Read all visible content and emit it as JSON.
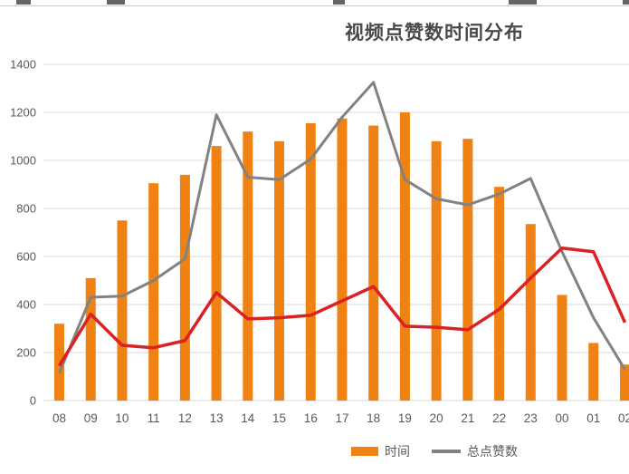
{
  "chart_data": {
    "type": "bar+line combo",
    "title": "视频点赞数时间分布",
    "categories": [
      "08",
      "09",
      "10",
      "11",
      "12",
      "13",
      "14",
      "15",
      "16",
      "17",
      "18",
      "19",
      "20",
      "21",
      "22",
      "23",
      "00",
      "01",
      "02"
    ],
    "bar_series": {
      "name": "时间",
      "color": "#EF8212",
      "values": [
        320,
        510,
        750,
        905,
        940,
        1060,
        1120,
        1080,
        1155,
        1175,
        1145,
        1200,
        1080,
        1090,
        890,
        735,
        440,
        240,
        150
      ]
    },
    "line_series": [
      {
        "name": "总点赞数",
        "color": "#828282",
        "values": [
          115,
          430,
          435,
          500,
          590,
          1190,
          930,
          920,
          1005,
          1180,
          1325,
          920,
          840,
          815,
          860,
          925,
          620,
          345,
          130
        ]
      },
      {
        "name": "",
        "color": "#D92222",
        "values": [
          145,
          360,
          230,
          220,
          250,
          450,
          340,
          345,
          355,
          415,
          475,
          310,
          305,
          295,
          380,
          510,
          635,
          620,
          325
        ]
      }
    ],
    "y_axis": {
      "min": 0,
      "max": 1400,
      "step": 200,
      "ticks": [
        "0",
        "200",
        "400",
        "600",
        "800",
        "1000",
        "1200",
        "1400"
      ]
    },
    "legend": [
      {
        "label": "时间",
        "type": "bar"
      },
      {
        "label": "总点赞数",
        "type": "line"
      }
    ],
    "grid": true,
    "legend_position": "bottom"
  },
  "colors": {
    "gridline": "#D9D9D9",
    "axis_text": "#595959",
    "title_text": "#4A4A4A"
  }
}
